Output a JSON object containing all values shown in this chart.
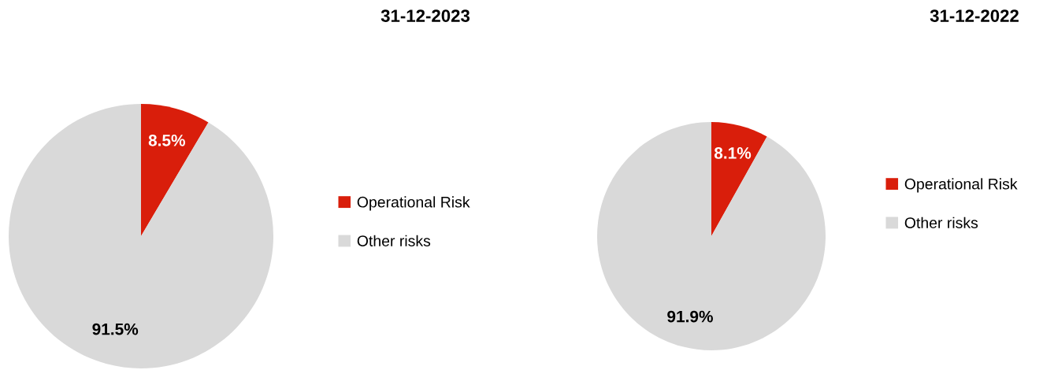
{
  "chart_data": [
    {
      "type": "pie",
      "title": "31-12-2023",
      "categories": [
        "Operational Risk",
        "Other risks"
      ],
      "values": [
        8.5,
        91.5
      ],
      "colors": [
        "#d91e0b",
        "#d9d9d9"
      ],
      "value_labels": [
        "8.5%",
        "91.5%"
      ],
      "legend": "right"
    },
    {
      "type": "pie",
      "title": "31-12-2022",
      "categories": [
        "Operational Risk",
        "Other risks"
      ],
      "values": [
        8.1,
        91.9
      ],
      "colors": [
        "#d91e0b",
        "#d9d9d9"
      ],
      "value_labels": [
        "8.1%",
        "91.9%"
      ],
      "legend": "right"
    }
  ]
}
